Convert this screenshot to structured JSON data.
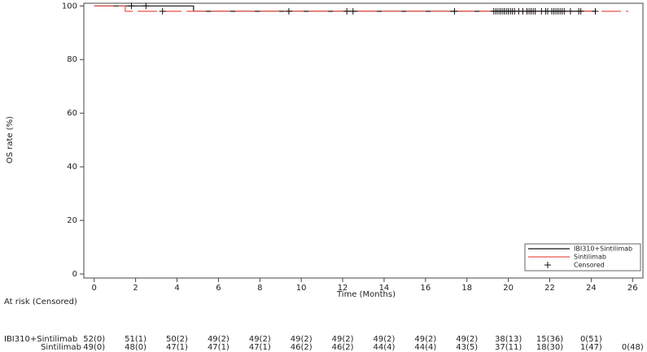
{
  "chart_data": {
    "type": "km",
    "xlabel": "Time (Months)",
    "ylabel": "OS rate (%)",
    "xlim": [
      -0.5,
      26.5
    ],
    "ylim": [
      -1.5,
      101
    ],
    "xticks": [
      0,
      2,
      4,
      6,
      8,
      10,
      12,
      14,
      16,
      18,
      20,
      22,
      24,
      26
    ],
    "yticks": [
      0,
      20,
      40,
      60,
      80,
      100
    ],
    "legend": "lower right",
    "series": [
      {
        "name": "IBI310+Sintilimab",
        "color": "#111111",
        "dash": false,
        "x": [
          0,
          4.8,
          24.2
        ],
        "values": [
          100,
          98,
          98
        ]
      },
      {
        "name": "Sintilimab",
        "color": "#e8554a",
        "dash": true,
        "x": [
          0,
          1.5,
          25.8
        ],
        "values": [
          100,
          98,
          98
        ]
      }
    ],
    "censored": {
      "name": "Censored",
      "color": "#111111",
      "x": [
        1.8,
        2.5,
        3.3,
        9.4,
        12.2,
        12.5,
        17.4,
        19.3,
        19.4,
        19.5,
        19.6,
        19.7,
        19.8,
        19.9,
        20.0,
        20.1,
        20.2,
        20.3,
        20.5,
        20.7,
        20.9,
        21.0,
        21.1,
        21.2,
        21.3,
        21.6,
        21.8,
        21.9,
        22.1,
        22.2,
        22.3,
        22.4,
        22.5,
        22.6,
        22.7,
        23.0,
        23.4,
        23.5,
        24.2
      ],
      "values": [
        100,
        100,
        98,
        98,
        98,
        98,
        98,
        98,
        98,
        98,
        98,
        98,
        98,
        98,
        98,
        98,
        98,
        98,
        98,
        98,
        98,
        98,
        98,
        98,
        98,
        98,
        98,
        98,
        98,
        98,
        98,
        98,
        98,
        98,
        98,
        98,
        98,
        98,
        98
      ]
    },
    "at_risk": {
      "title": "At risk (Censored)",
      "rows": [
        {
          "name": "IBI310+Sintilimab",
          "values": [
            "52(0)",
            "51(1)",
            "50(2)",
            "49(2)",
            "49(2)",
            "49(2)",
            "49(2)",
            "49(2)",
            "49(2)",
            "49(2)",
            "38(13)",
            "15(36)",
            "0(51)"
          ]
        },
        {
          "name": "Sintilimab",
          "values": [
            "49(0)",
            "48(0)",
            "47(1)",
            "47(1)",
            "47(1)",
            "46(2)",
            "46(2)",
            "44(4)",
            "44(4)",
            "43(5)",
            "37(11)",
            "18(30)",
            "1(47)",
            "0(48)"
          ]
        }
      ]
    }
  }
}
